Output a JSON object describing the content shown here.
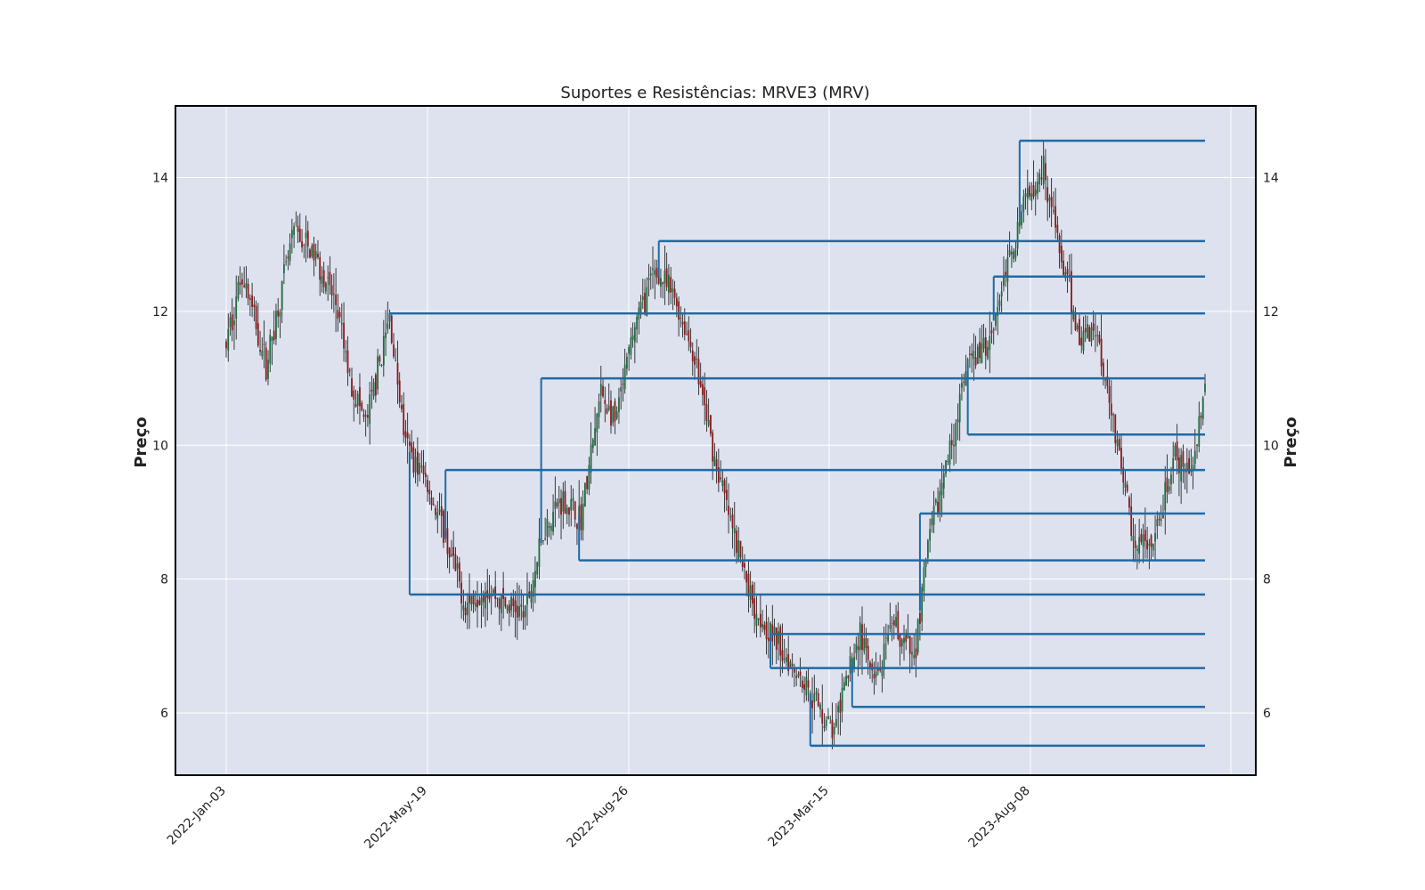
{
  "chart_data": {
    "type": "candlestick",
    "title": "Suportes e Resistências: MRVE3 (MRV)",
    "ylabel": "Preço",
    "ylabel_right": "Preço",
    "xlabel": "",
    "x_ticks": [
      "2022-Jan-03",
      "2022-May-19",
      "2022-Aug-26",
      "2023-Mar-15",
      "2023-Aug-08"
    ],
    "y_ticks": [
      6,
      8,
      10,
      12,
      14
    ],
    "ylim": [
      5.07,
      15.07
    ],
    "trading_days": 492,
    "grid": true,
    "colors": {
      "plot_background": "#dde2ee",
      "grid": "#ffffff",
      "frame": "#000000",
      "up_candle": "#1e6b3c",
      "down_candle": "#8b1a1a",
      "wick": "#111111",
      "level_line": "#1f6aa5"
    },
    "series_anchors": [
      [
        0,
        11.5
      ],
      [
        8,
        12.6
      ],
      [
        20,
        11.2
      ],
      [
        34,
        13.2
      ],
      [
        45,
        12.8
      ],
      [
        55,
        12.1
      ],
      [
        62,
        11.0
      ],
      [
        70,
        10.3
      ],
      [
        82,
        11.9
      ],
      [
        90,
        10.0
      ],
      [
        100,
        9.5
      ],
      [
        110,
        8.6
      ],
      [
        120,
        7.6
      ],
      [
        130,
        7.9
      ],
      [
        140,
        7.6
      ],
      [
        150,
        7.5
      ],
      [
        160,
        8.8
      ],
      [
        168,
        9.2
      ],
      [
        178,
        8.9
      ],
      [
        188,
        10.8
      ],
      [
        195,
        10.3
      ],
      [
        205,
        11.8
      ],
      [
        215,
        12.6
      ],
      [
        225,
        12.2
      ],
      [
        235,
        11.3
      ],
      [
        245,
        9.8
      ],
      [
        255,
        8.6
      ],
      [
        265,
        7.6
      ],
      [
        275,
        7.1
      ],
      [
        285,
        6.7
      ],
      [
        295,
        6.2
      ],
      [
        305,
        5.7
      ],
      [
        312,
        6.6
      ],
      [
        318,
        7.2
      ],
      [
        325,
        6.4
      ],
      [
        335,
        7.3
      ],
      [
        345,
        6.8
      ],
      [
        352,
        8.5
      ],
      [
        362,
        9.8
      ],
      [
        372,
        11.2
      ],
      [
        382,
        11.5
      ],
      [
        392,
        12.7
      ],
      [
        402,
        13.8
      ],
      [
        410,
        14.2
      ],
      [
        418,
        12.9
      ],
      [
        428,
        11.6
      ],
      [
        436,
        11.8
      ],
      [
        445,
        10.4
      ],
      [
        455,
        8.6
      ],
      [
        465,
        8.4
      ],
      [
        475,
        9.8
      ],
      [
        483,
        9.5
      ],
      [
        491,
        10.9
      ]
    ],
    "support_resistance_levels": [
      {
        "price": 14.55,
        "start_day": 398
      },
      {
        "price": 13.05,
        "start_day": 217
      },
      {
        "price": 12.52,
        "start_day": 385
      },
      {
        "price": 11.97,
        "start_day": 82
      },
      {
        "price": 11.0,
        "start_day": 158
      },
      {
        "price": 10.16,
        "start_day": 372
      },
      {
        "price": 9.63,
        "start_day": 110
      },
      {
        "price": 8.98,
        "start_day": 348
      },
      {
        "price": 8.28,
        "start_day": 177
      },
      {
        "price": 7.77,
        "start_day": 92
      },
      {
        "price": 7.18,
        "start_day": 274
      },
      {
        "price": 6.67,
        "start_day": 273
      },
      {
        "price": 6.09,
        "start_day": 314
      },
      {
        "price": 5.51,
        "start_day": 293
      }
    ]
  }
}
